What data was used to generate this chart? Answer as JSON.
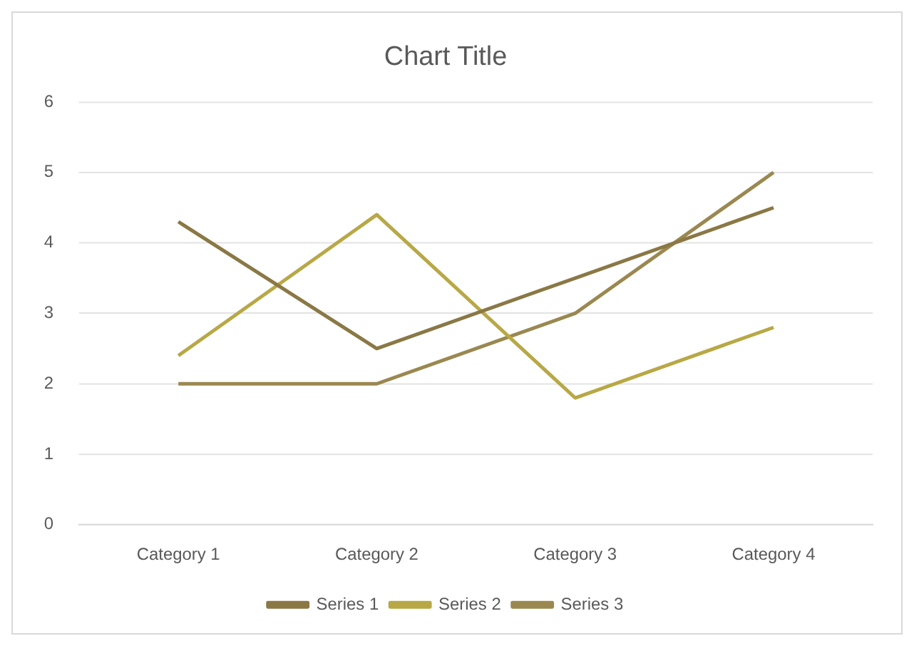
{
  "chart_data": {
    "type": "line",
    "title": "Chart Title",
    "categories": [
      "Category 1",
      "Category 2",
      "Category 3",
      "Category 4"
    ],
    "series": [
      {
        "name": "Series 1",
        "color": "#8a7845",
        "values": [
          4.3,
          2.5,
          3.5,
          4.5
        ]
      },
      {
        "name": "Series 2",
        "color": "#b8a846",
        "values": [
          2.4,
          4.4,
          1.8,
          2.8
        ]
      },
      {
        "name": "Series 3",
        "color": "#9a8850",
        "values": [
          2,
          2,
          3,
          5
        ]
      }
    ],
    "ylim": [
      0,
      6
    ],
    "yticks": [
      0,
      1,
      2,
      3,
      4,
      5,
      6
    ],
    "grid": "y",
    "legend": "bottom",
    "marker": "none",
    "line_style": "solid"
  }
}
